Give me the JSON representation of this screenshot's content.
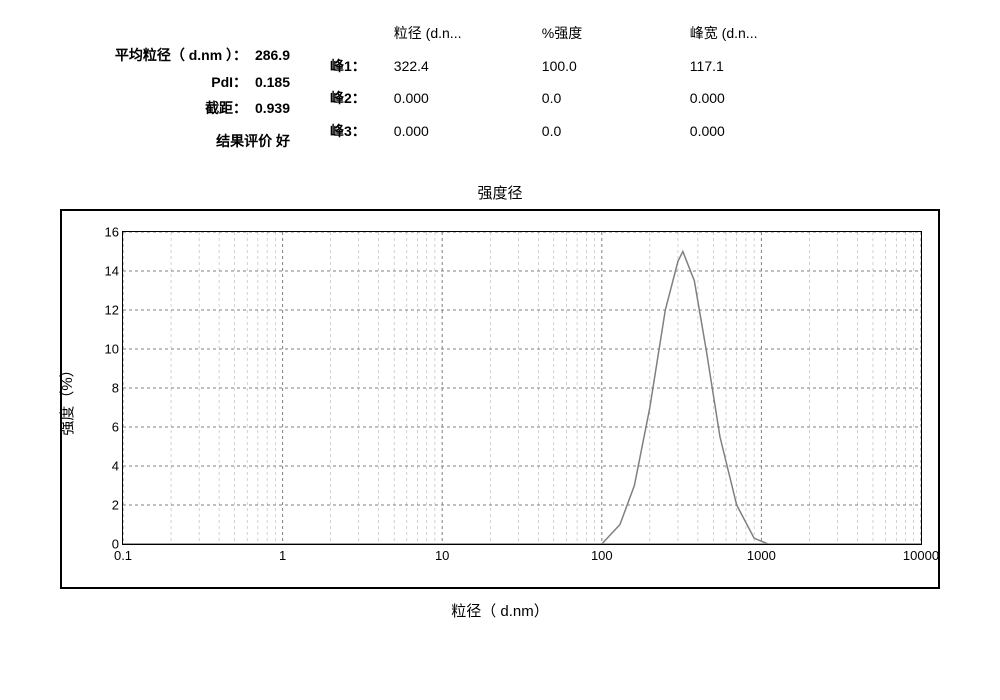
{
  "summary": {
    "avg_label": "平均粒径（ d.nm ）：",
    "avg_value": "286.9",
    "pdi_label": "PdI：",
    "pdi_value": "0.185",
    "intercept_label": "截距：",
    "intercept_value": "0.939",
    "quality_label": "结果评价",
    "quality_value": "好"
  },
  "peaks": {
    "col_diam": "粒径 (d.n...",
    "col_intensity": "%强度",
    "col_width": "峰宽  (d.n...",
    "rows": [
      {
        "label": "峰1：",
        "diam": "322.4",
        "intensity": "100.0",
        "width": "117.1"
      },
      {
        "label": "峰2：",
        "diam": "0.000",
        "intensity": "0.0",
        "width": "0.000"
      },
      {
        "label": "峰3：",
        "diam": "0.000",
        "intensity": "0.0",
        "width": "0.000"
      }
    ]
  },
  "chart": {
    "title": "强度径",
    "y_label": "强度（%）",
    "x_label": "粒径（ d.nm）",
    "type": "line",
    "x_scale": "log",
    "xlim": [
      0.1,
      10000
    ],
    "ylim": [
      0,
      16
    ],
    "y_ticks": [
      0,
      2,
      4,
      6,
      8,
      10,
      12,
      14,
      16
    ],
    "x_ticks": [
      0.1,
      1,
      10,
      100,
      1000,
      10000
    ],
    "x_tick_labels": [
      "0.1",
      "1",
      "10",
      "100",
      "1000",
      "10000"
    ],
    "grid_color": "#808080",
    "grid_dash": "3,3",
    "line_color": "#808080",
    "line_width": 1.5,
    "background": "#ffffff",
    "series": {
      "x": [
        100,
        130,
        160,
        200,
        250,
        300,
        322,
        380,
        450,
        550,
        700,
        900,
        1100
      ],
      "y": [
        0,
        1,
        3,
        7,
        12,
        14.5,
        15,
        13.5,
        10,
        5.5,
        2,
        0.3,
        0
      ]
    }
  }
}
